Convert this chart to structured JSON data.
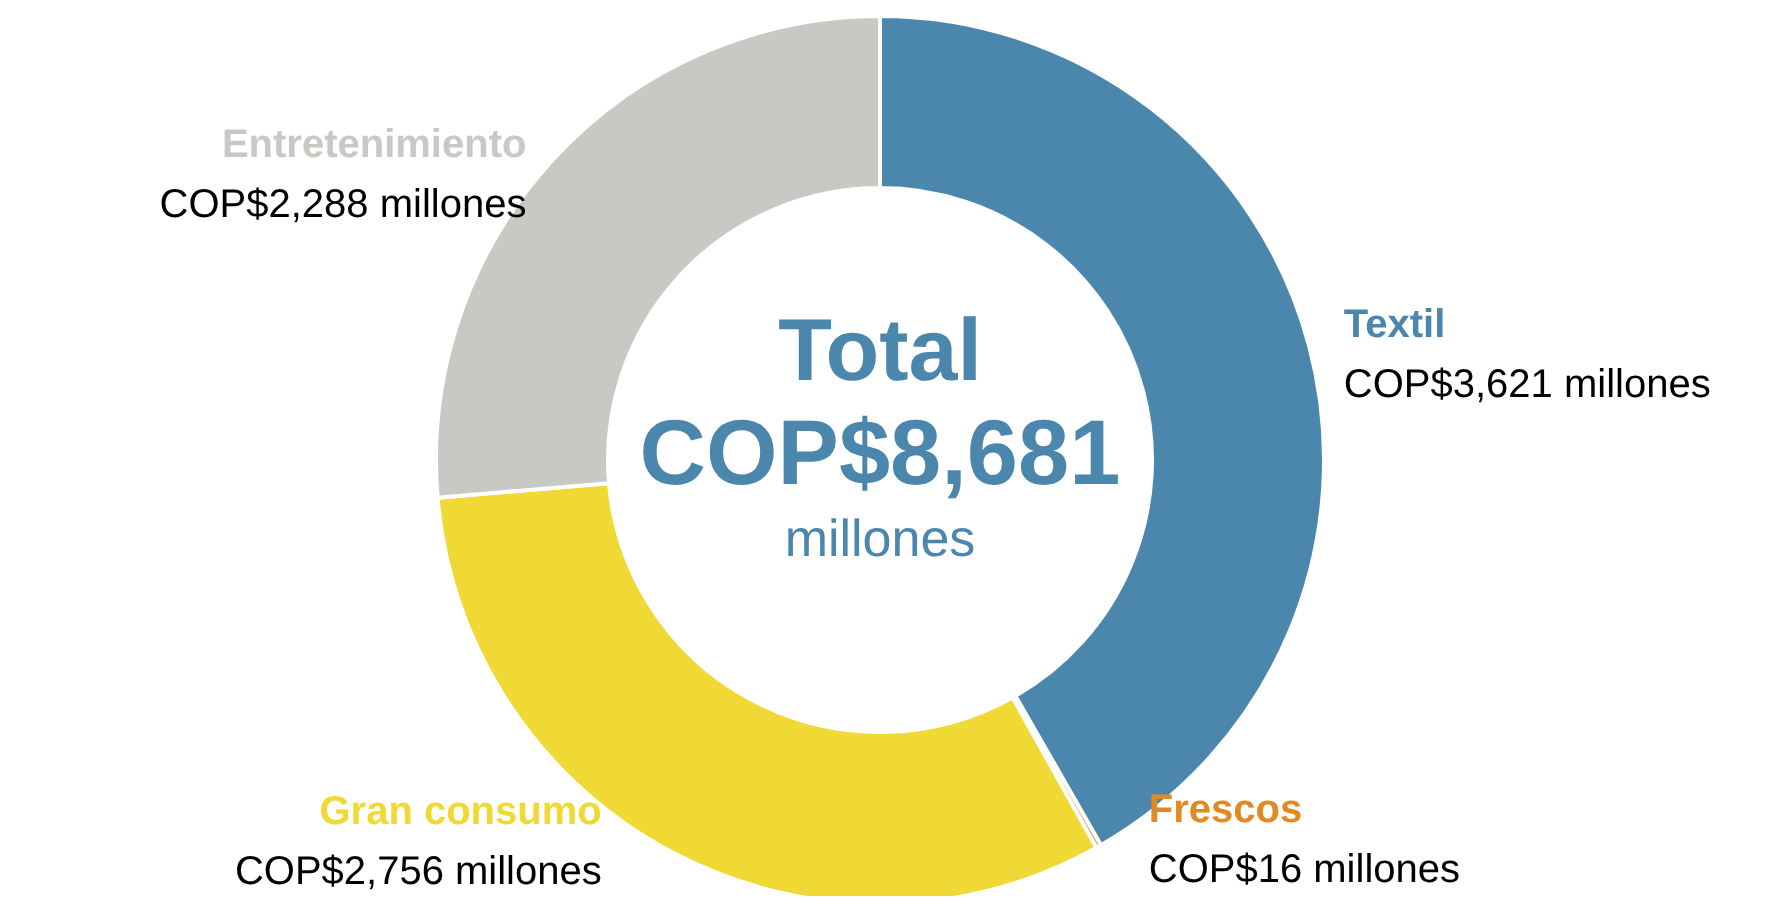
{
  "chart_data": {
    "type": "donut",
    "categories": [
      "Textil",
      "Frescos",
      "Gran consumo",
      "Entretenimiento"
    ],
    "values": [
      3621,
      16,
      2756,
      2288
    ],
    "colors": [
      "#4b87ad",
      "#e08a24",
      "#f0d934",
      "#c8c9c4"
    ],
    "value_labels": [
      "COP$3,621 millones",
      "COP$16 millones",
      "COP$2,756 millones",
      "COP$2,288 millones"
    ],
    "annotations": [
      "Total",
      "COP$8,681",
      "millones"
    ]
  }
}
